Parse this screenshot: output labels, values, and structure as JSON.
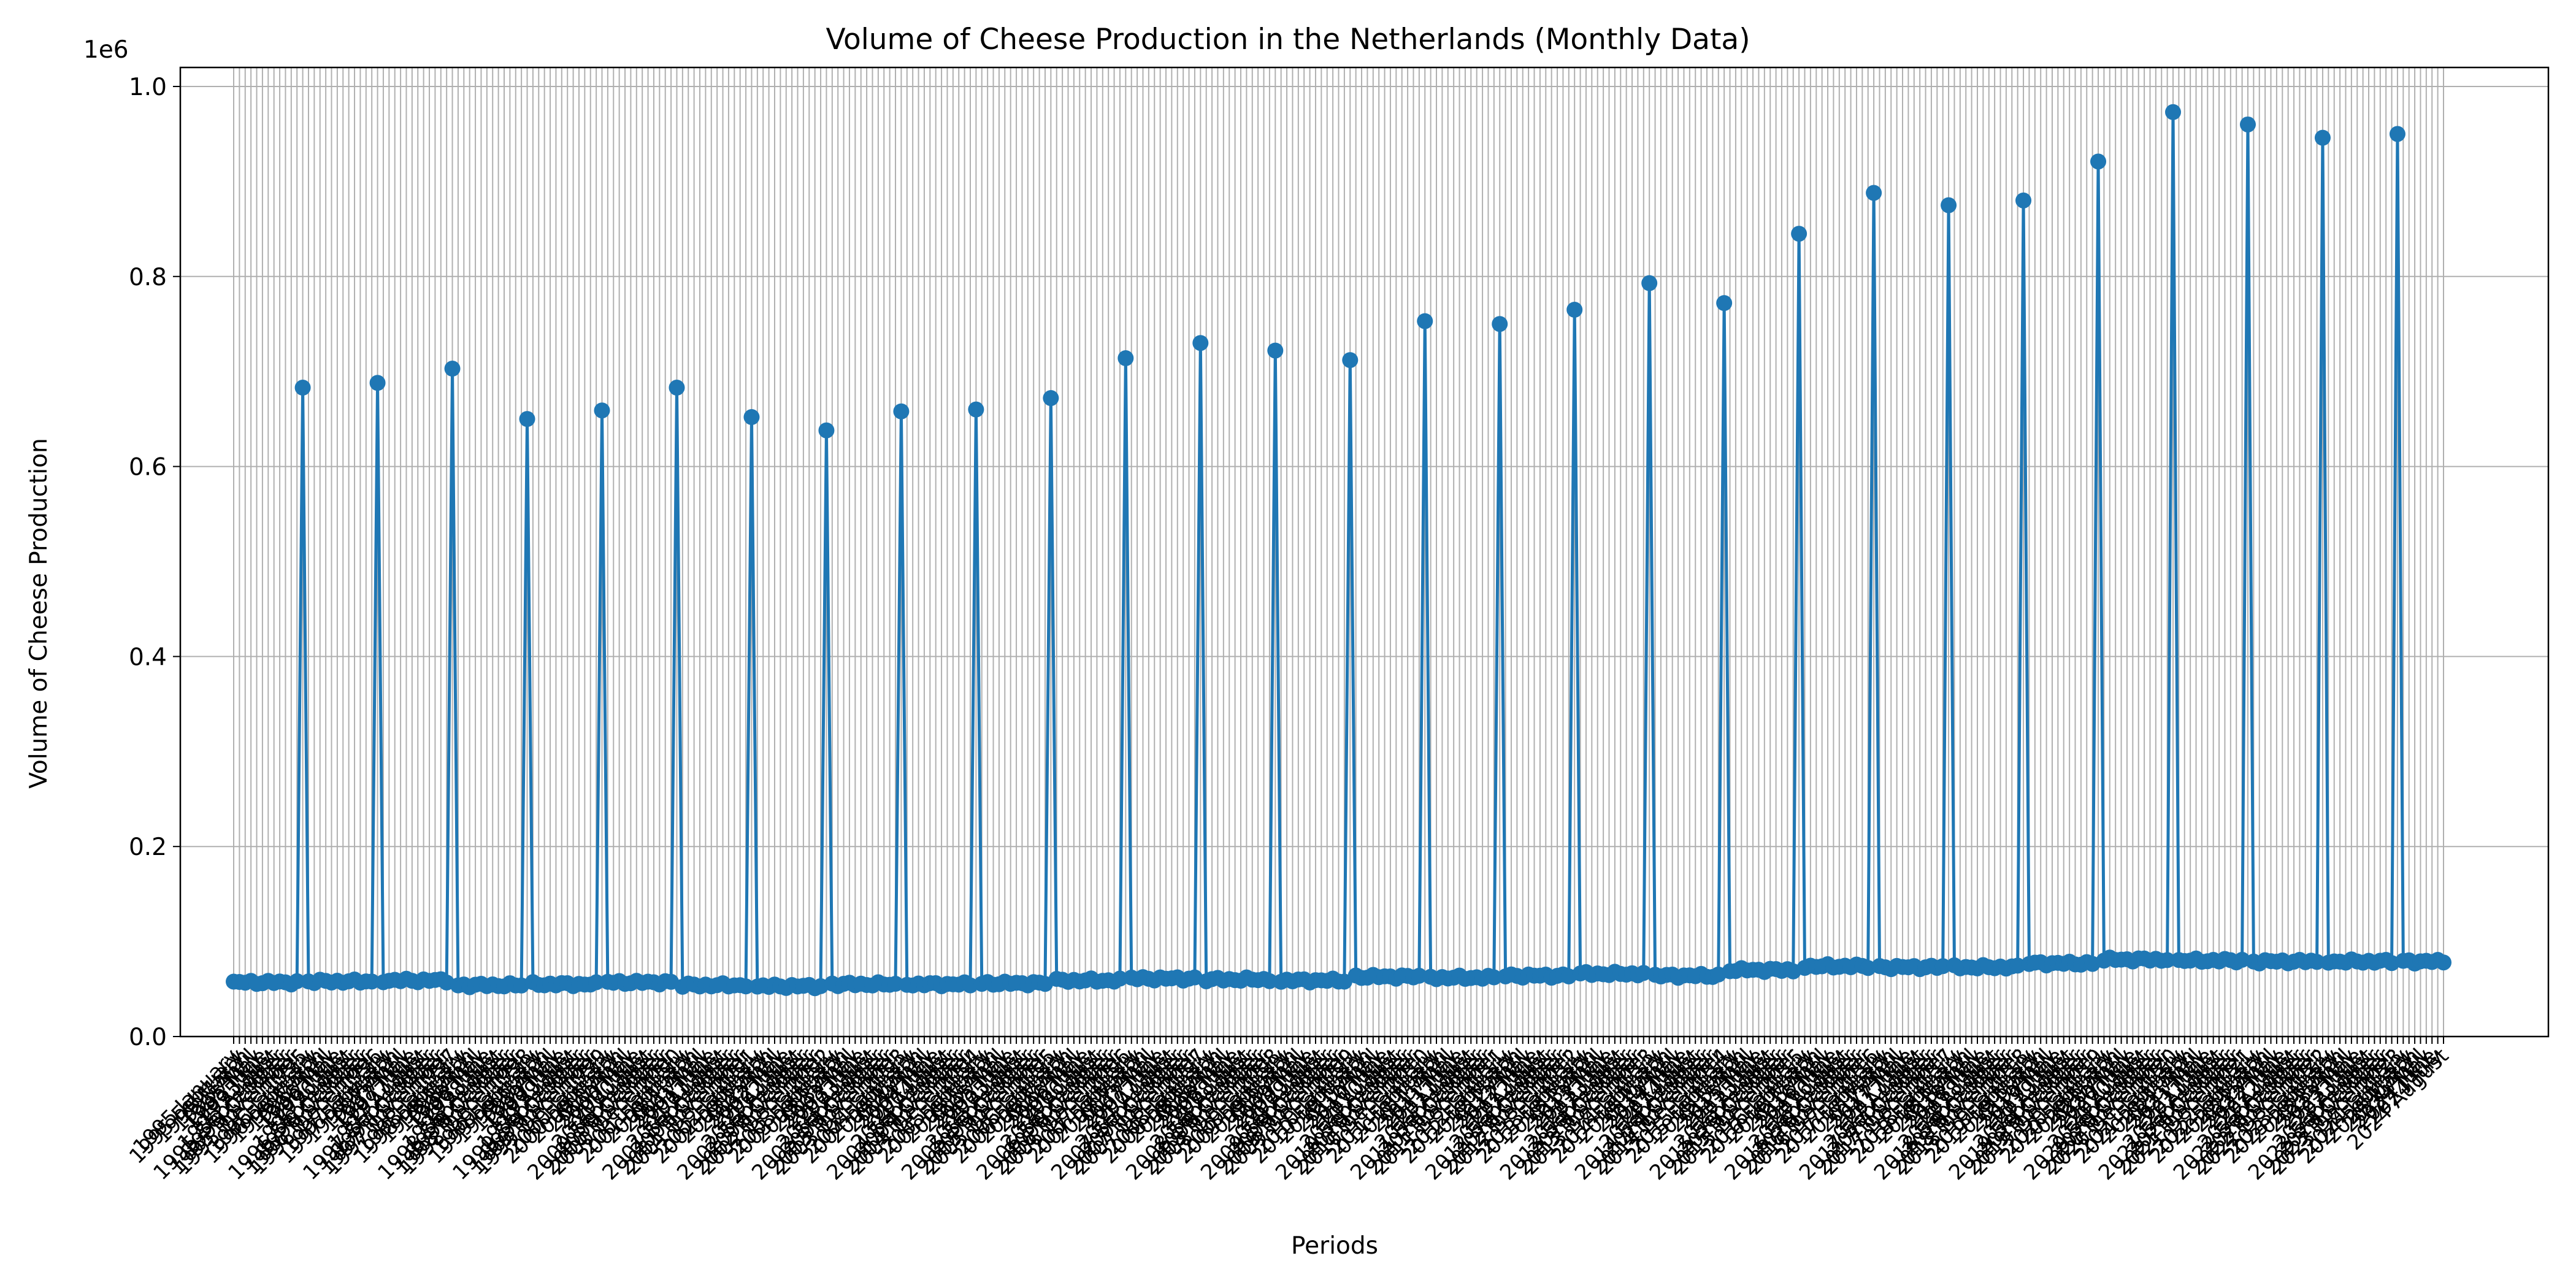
{
  "chart_data": {
    "type": "line",
    "title": "Volume of Cheese Production in the Netherlands (Monthly Data)",
    "xlabel": "Periods",
    "ylabel": "Volume of Cheese Production",
    "y_offset_label": "1e6",
    "ylim": [
      0,
      1020000
    ],
    "y_ticks": [
      0,
      200000,
      400000,
      600000,
      800000,
      1000000
    ],
    "y_tick_labels": [
      "0.0",
      "0.2",
      "0.4",
      "0.6",
      "0.8",
      "1.0"
    ],
    "grid": true,
    "x_start": {
      "year": 1995,
      "month": 1
    },
    "months": [
      "January",
      "February",
      "March",
      "April",
      "May",
      "June",
      "July",
      "August",
      "September",
      "October",
      "November",
      "December"
    ],
    "annual_total_label": "",
    "annual_totals": [
      {
        "year": 1995,
        "value": 683000
      },
      {
        "year": 1996,
        "value": 688000
      },
      {
        "year": 1997,
        "value": 703000
      },
      {
        "year": 1998,
        "value": 650000
      },
      {
        "year": 1999,
        "value": 659000
      },
      {
        "year": 2000,
        "value": 683000
      },
      {
        "year": 2001,
        "value": 652000
      },
      {
        "year": 2002,
        "value": 638000
      },
      {
        "year": 2003,
        "value": 658000
      },
      {
        "year": 2004,
        "value": 660000
      },
      {
        "year": 2005,
        "value": 672000
      },
      {
        "year": 2006,
        "value": 714000
      },
      {
        "year": 2007,
        "value": 730000
      },
      {
        "year": 2008,
        "value": 722000
      },
      {
        "year": 2009,
        "value": 712000
      },
      {
        "year": 2010,
        "value": 753000
      },
      {
        "year": 2011,
        "value": 750000
      },
      {
        "year": 2012,
        "value": 765000
      },
      {
        "year": 2013,
        "value": 793000
      },
      {
        "year": 2014,
        "value": 772000
      },
      {
        "year": 2015,
        "value": 845000
      },
      {
        "year": 2016,
        "value": 888000
      },
      {
        "year": 2017,
        "value": 875000
      },
      {
        "year": 2018,
        "value": 880000
      },
      {
        "year": 2019,
        "value": 921000
      },
      {
        "year": 2020,
        "value": 973000
      },
      {
        "year": 2021,
        "value": 960000
      },
      {
        "year": 2022,
        "value": 946000
      },
      {
        "year": 2023,
        "value": 950000
      }
    ],
    "monthly_baseline_by_year": [
      {
        "year": 1995,
        "value": 57000
      },
      {
        "year": 1996,
        "value": 58000
      },
      {
        "year": 1997,
        "value": 59000
      },
      {
        "year": 1998,
        "value": 54000
      },
      {
        "year": 1999,
        "value": 55000
      },
      {
        "year": 2000,
        "value": 57000
      },
      {
        "year": 2001,
        "value": 54000
      },
      {
        "year": 2002,
        "value": 53000
      },
      {
        "year": 2003,
        "value": 55000
      },
      {
        "year": 2004,
        "value": 55000
      },
      {
        "year": 2005,
        "value": 56000
      },
      {
        "year": 2006,
        "value": 59000
      },
      {
        "year": 2007,
        "value": 61000
      },
      {
        "year": 2008,
        "value": 60000
      },
      {
        "year": 2009,
        "value": 59000
      },
      {
        "year": 2010,
        "value": 63000
      },
      {
        "year": 2011,
        "value": 62000
      },
      {
        "year": 2012,
        "value": 64000
      },
      {
        "year": 2013,
        "value": 66000
      },
      {
        "year": 2014,
        "value": 64000
      },
      {
        "year": 2015,
        "value": 70000
      },
      {
        "year": 2016,
        "value": 74000
      },
      {
        "year": 2017,
        "value": 73000
      },
      {
        "year": 2018,
        "value": 73000
      },
      {
        "year": 2019,
        "value": 77000
      },
      {
        "year": 2020,
        "value": 81000
      },
      {
        "year": 2021,
        "value": 80000
      },
      {
        "year": 2022,
        "value": 79000
      },
      {
        "year": 2023,
        "value": 79000
      },
      {
        "year": 2024,
        "value": 79000
      }
    ],
    "last_period": {
      "year": 2024,
      "month": 8,
      "label": "2024 August"
    },
    "series_color": "#1f77b4",
    "grid_color": "#b0b0b0"
  }
}
